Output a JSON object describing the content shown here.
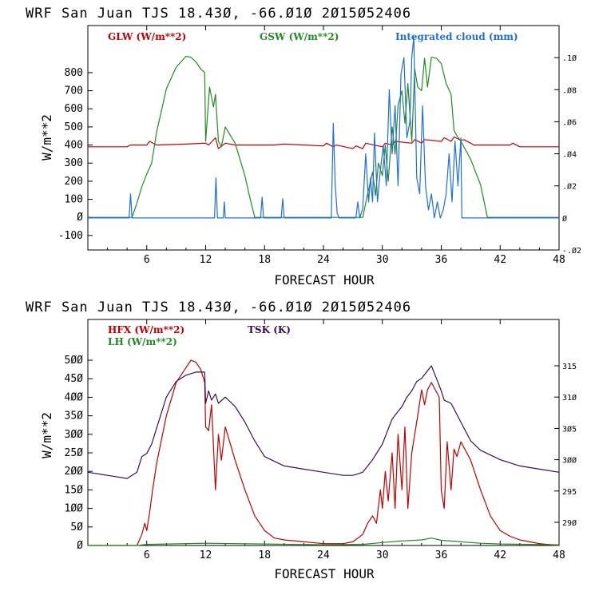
{
  "chart_data": [
    {
      "type": "line",
      "title": "WRF  San Juan TJS  18.43Ø, -66.Ø1Ø  2Ø15Ø52406",
      "xlabel": "FORECAST HOUR",
      "ylabel": "W/m**2",
      "xlim": [
        0,
        48
      ],
      "ylim": [
        -180,
        1060
      ],
      "y2lim": [
        -0.02,
        0.12
      ],
      "xticks": [
        6,
        12,
        18,
        24,
        30,
        36,
        42,
        48
      ],
      "yticks": [
        -100,
        0,
        100,
        200,
        300,
        400,
        500,
        600,
        700,
        800
      ],
      "yticklabels": [
        "-100",
        "Ø",
        "100",
        "200",
        "300",
        "400",
        "500",
        "600",
        "700",
        "800"
      ],
      "y2ticks": [
        -0.02,
        0,
        0.02,
        0.04,
        0.06,
        0.08,
        0.1
      ],
      "y2ticklabels": [
        "-.Ø2",
        "Ø",
        ".Ø2",
        ".Ø4",
        ".Ø6",
        ".Ø8",
        ".1Ø"
      ],
      "legend": [
        "GLW (W/m**2)",
        "GSW (W/m**2)",
        "Integrated cloud (mm)"
      ],
      "series": [
        {
          "name": "GLW (W/m**2)",
          "color": "#c00000",
          "axis": "left",
          "x": [
            0,
            4,
            4.3,
            6,
            6.3,
            7,
            10,
            12,
            12.3,
            13,
            13.3,
            14,
            15,
            17,
            19,
            20,
            22,
            24,
            24.3,
            25,
            25.3,
            27,
            27.3,
            28,
            28.3,
            30,
            30.3,
            31,
            31.3,
            33,
            33.3,
            34,
            34.3,
            36,
            36.3,
            37,
            37.3,
            38,
            38.3,
            39,
            39.3,
            43,
            43.3,
            44,
            48
          ],
          "y": [
            390,
            390,
            400,
            400,
            420,
            400,
            405,
            410,
            400,
            440,
            380,
            410,
            400,
            400,
            400,
            405,
            400,
            395,
            410,
            390,
            400,
            380,
            395,
            380,
            410,
            390,
            410,
            400,
            420,
            410,
            430,
            410,
            430,
            420,
            440,
            420,
            445,
            425,
            430,
            410,
            400,
            400,
            410,
            390,
            390
          ]
        },
        {
          "name": "GSW (W/m**2)",
          "color": "#228b22",
          "axis": "left",
          "x": [
            0,
            4.5,
            5,
            5.5,
            6,
            6.5,
            7,
            8,
            9,
            10,
            10.5,
            11,
            11.5,
            11.9,
            12,
            12.4,
            12.8,
            13,
            13.3,
            13.6,
            14,
            15,
            16,
            16.5,
            17,
            28,
            28.5,
            29,
            29.3,
            29.6,
            30,
            30.3,
            30.6,
            31,
            31.3,
            31.6,
            32,
            32.3,
            32.6,
            33,
            33.3,
            33.6,
            34,
            34.3,
            34.6,
            35,
            35.5,
            36,
            36.5,
            37,
            37.3,
            37.6,
            38,
            39,
            40,
            40.7,
            48
          ],
          "y": [
            0,
            0,
            80,
            170,
            240,
            300,
            470,
            710,
            830,
            890,
            885,
            860,
            820,
            800,
            420,
            720,
            610,
            680,
            420,
            390,
            500,
            410,
            230,
            110,
            0,
            0,
            130,
            250,
            120,
            300,
            230,
            400,
            200,
            500,
            350,
            620,
            700,
            520,
            740,
            420,
            820,
            720,
            700,
            880,
            720,
            885,
            880,
            850,
            740,
            680,
            480,
            450,
            420,
            320,
            180,
            0,
            0
          ]
        },
        {
          "name": "Integrated cloud (mm)",
          "color": "#1e6fd9",
          "axis": "right",
          "x": [
            0,
            4.2,
            4.35,
            4.5,
            12.9,
            13.05,
            13.2,
            13.8,
            13.9,
            14,
            17.6,
            17.75,
            17.9,
            19.7,
            19.85,
            20,
            24.8,
            25,
            25.2,
            25.4,
            25.6,
            27.3,
            27.5,
            27.7,
            28,
            28.3,
            28.6,
            28.8,
            29,
            29.2,
            29.5,
            29.8,
            30.1,
            30.4,
            30.7,
            31,
            31.3,
            31.6,
            31.9,
            32.2,
            32.5,
            32.8,
            33,
            33.2,
            33.5,
            33.8,
            34.1,
            34.4,
            34.7,
            35,
            35.3,
            35.6,
            35.9,
            36.2,
            36.5,
            36.8,
            37.1,
            37.4,
            37.7,
            38,
            38.1,
            48
          ],
          "y": [
            0,
            0,
            0.015,
            0,
            0,
            0.025,
            0,
            0,
            0.01,
            0,
            0,
            0.013,
            0,
            0,
            0.012,
            0,
            0,
            0.059,
            0.02,
            0.003,
            0,
            0,
            0.01,
            0,
            0.006,
            0.04,
            0.01,
            0.025,
            0.01,
            0.053,
            0.01,
            0.03,
            0.045,
            0.02,
            0.08,
            0.04,
            0.07,
            0.02,
            0.09,
            0.1,
            0.05,
            0.06,
            0.1,
            0.113,
            0.025,
            0.015,
            0.07,
            0.02,
            0.005,
            0.015,
            0.0,
            0.01,
            0.0,
            0.005,
            0.015,
            0.04,
            0.01,
            0.048,
            0.02,
            0.05,
            0,
            0
          ]
        }
      ]
    },
    {
      "type": "line",
      "title": "WRF  San Juan TJS  18.43Ø, -66.Ø1Ø  2Ø15Ø52406",
      "xlabel": "FORECAST HOUR",
      "ylabel": "W/m**2",
      "xlim": [
        0,
        48
      ],
      "ylim": [
        0,
        610
      ],
      "y2lim": [
        286.3,
        322.4
      ],
      "xticks": [
        6,
        12,
        18,
        24,
        30,
        36,
        42,
        48
      ],
      "yticks": [
        0,
        50,
        100,
        150,
        200,
        250,
        300,
        350,
        400,
        450,
        500
      ],
      "yticklabels": [
        "Ø",
        "5Ø",
        "1ØØ",
        "15Ø",
        "2ØØ",
        "25Ø",
        "3ØØ",
        "35Ø",
        "4ØØ",
        "45Ø",
        "5ØØ"
      ],
      "y2ticks": [
        290,
        295,
        300,
        305,
        310,
        315
      ],
      "y2ticklabels": [
        "29Ø",
        "295",
        "3ØØ",
        "3Ø5",
        "31Ø",
        "315"
      ],
      "legend": [
        "HFX (W/m**2)",
        "LH (W/m**2)",
        "TSK (K)"
      ],
      "series": [
        {
          "name": "HFX (W/m**2)",
          "color": "#c00000",
          "axis": "left",
          "x": [
            0,
            5,
            5.5,
            5.8,
            6,
            6.3,
            6.6,
            7,
            8,
            9,
            10,
            10.5,
            11,
            11.5,
            11.9,
            12,
            12.3,
            12.6,
            13,
            13.3,
            13.6,
            14,
            15,
            16,
            17,
            18,
            19,
            20,
            22,
            24,
            26,
            27,
            28,
            28.5,
            29,
            29.4,
            29.8,
            30,
            30.3,
            30.6,
            31,
            31.3,
            31.6,
            32,
            32.3,
            32.6,
            33,
            33.3,
            33.6,
            34,
            34.3,
            34.6,
            35,
            35.4,
            35.8,
            36,
            36.3,
            36.6,
            37,
            37.3,
            37.6,
            38,
            39,
            40,
            41,
            42,
            43,
            44,
            45,
            46,
            48
          ],
          "y": [
            0,
            0,
            30,
            60,
            40,
            90,
            150,
            220,
            350,
            440,
            480,
            500,
            495,
            475,
            440,
            320,
            310,
            380,
            150,
            300,
            230,
            320,
            230,
            150,
            80,
            40,
            20,
            15,
            10,
            5,
            5,
            10,
            30,
            60,
            80,
            60,
            150,
            100,
            200,
            120,
            250,
            100,
            300,
            150,
            320,
            100,
            250,
            300,
            350,
            420,
            380,
            420,
            440,
            420,
            400,
            150,
            100,
            280,
            150,
            260,
            240,
            280,
            230,
            150,
            80,
            40,
            25,
            15,
            10,
            5,
            0
          ]
        },
        {
          "name": "LH (W/m**2)",
          "color": "#228b22",
          "axis": "left",
          "x": [
            0,
            5,
            6,
            12,
            18,
            24,
            28,
            30,
            32,
            34,
            35,
            36,
            38,
            40,
            42,
            48
          ],
          "y": [
            0,
            0,
            3,
            6,
            4,
            2,
            3,
            8,
            12,
            15,
            20,
            14,
            10,
            6,
            4,
            2
          ]
        },
        {
          "name": "TSK (K)",
          "color": "#3b0f4f",
          "axis": "right",
          "x": [
            0,
            2,
            4,
            5,
            5.5,
            6,
            6.5,
            7,
            8,
            9,
            10,
            11,
            11.9,
            12,
            12.3,
            12.6,
            13,
            13.3,
            14,
            15,
            16,
            17,
            18,
            20,
            22,
            24,
            26,
            27,
            28,
            29,
            30,
            30.5,
            31,
            31.5,
            32,
            32.5,
            33,
            33.5,
            34,
            34.5,
            35,
            35.5,
            36,
            36.3,
            37,
            38,
            39,
            40,
            42,
            44,
            46,
            48
          ],
          "y": [
            298,
            297.5,
            297,
            298,
            300.5,
            301,
            302.5,
            305,
            310,
            312.5,
            313.5,
            314,
            314,
            309,
            311,
            309.5,
            310.5,
            309,
            310,
            308.5,
            306,
            303,
            300.5,
            299,
            298.5,
            298,
            297.5,
            297.5,
            298,
            300,
            302.5,
            304.5,
            306.5,
            307.5,
            308.5,
            310,
            311,
            312.5,
            313,
            314,
            315,
            313,
            311,
            309.5,
            309,
            306,
            303,
            301.5,
            300,
            299,
            298.5,
            298
          ]
        }
      ]
    }
  ]
}
